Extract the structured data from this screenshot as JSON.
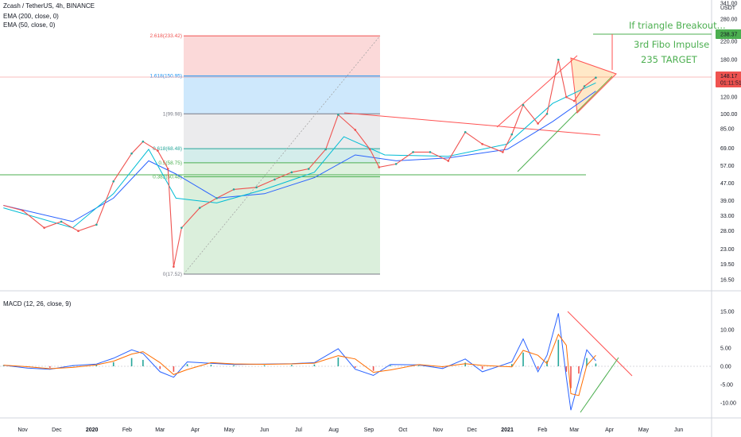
{
  "header": {
    "symbol_line": "Zcash / TetherUS, 4h, BINANCE",
    "ema200": "EMA (200, close, 0)",
    "ema50": "EMA (50, close, 0)",
    "macd": "MACD (12, 26, close, 9)"
  },
  "price_axis": {
    "unit": "USDT",
    "ticks": [
      "341.00",
      "280.00",
      "220.00",
      "180.00",
      "150.00",
      "120.00",
      "100.00",
      "85.00",
      "69.00",
      "57.00",
      "47.00",
      "39.00",
      "33.00",
      "28.00",
      "23.00",
      "19.50",
      "16.50"
    ],
    "current_price": "148.17",
    "countdown": "01:11:51",
    "target_price": "238.37"
  },
  "macd_axis": {
    "ticks": [
      "15.00",
      "10.00",
      "5.00",
      "0.00",
      "-5.00",
      "-10.00"
    ]
  },
  "time_axis": {
    "labels": [
      "Nov",
      "Dec",
      "2020",
      "Feb",
      "Mar",
      "Apr",
      "May",
      "Jun",
      "Jul",
      "Aug",
      "Sep",
      "Oct",
      "Nov",
      "Dec",
      "2021",
      "Feb",
      "Mar",
      "Apr",
      "May",
      "Jun"
    ]
  },
  "fib_levels": [
    {
      "label": "2.618(233.42)",
      "color": "#ef5350"
    },
    {
      "label": "1.618(150.95)",
      "color": "#2196f3"
    },
    {
      "label": "1(99.98)",
      "color": "#787b86"
    },
    {
      "label": "0.618(68.48)",
      "color": "#26a69a"
    },
    {
      "label": "0.5(58.75)",
      "color": "#4caf50"
    },
    {
      "label": "0.382(50.48)",
      "color": "#4caf50"
    },
    {
      "label": "0(17.52)",
      "color": "#787b86"
    }
  ],
  "annotations": {
    "breakout": "If triangle Breakout...",
    "impulse": "3rd Fibo Impulse",
    "target": "235 TARGET"
  },
  "colors": {
    "up": "#26a69a",
    "down": "#ef5350",
    "ema200": "#2962ff",
    "ema50": "#00bcd4",
    "macd_line": "#2962ff",
    "signal_line": "#ff6d00",
    "trend_red": "#ff5252",
    "trend_green": "#4caf50",
    "annotation": "#4caf50"
  },
  "chart_data": {
    "type": "line",
    "title": "Zcash / TetherUS, 4h, BINANCE",
    "y_scale": "log",
    "ylim": [
      15.5,
      341
    ],
    "x_range": [
      "2019-10-12",
      "2021-06-30"
    ],
    "series": [
      {
        "name": "Zcash / TetherUS",
        "points": [
          [
            "2019-10-15",
            37
          ],
          [
            "2019-11-01",
            35
          ],
          [
            "2019-11-20",
            29
          ],
          [
            "2019-12-05",
            31
          ],
          [
            "2019-12-20",
            28
          ],
          [
            "2020-01-05",
            30
          ],
          [
            "2020-01-20",
            48
          ],
          [
            "2020-02-05",
            65
          ],
          [
            "2020-02-15",
            74
          ],
          [
            "2020-02-28",
            67
          ],
          [
            "2020-03-08",
            55
          ],
          [
            "2020-03-13",
            19
          ],
          [
            "2020-03-20",
            29
          ],
          [
            "2020-04-05",
            36
          ],
          [
            "2020-04-20",
            40
          ],
          [
            "2020-05-05",
            44
          ],
          [
            "2020-05-25",
            45
          ],
          [
            "2020-06-10",
            49
          ],
          [
            "2020-06-25",
            53
          ],
          [
            "2020-07-10",
            55
          ],
          [
            "2020-07-25",
            68
          ],
          [
            "2020-08-05",
            99
          ],
          [
            "2020-08-20",
            84
          ],
          [
            "2020-09-02",
            68
          ],
          [
            "2020-09-10",
            56
          ],
          [
            "2020-09-25",
            58
          ],
          [
            "2020-10-10",
            66
          ],
          [
            "2020-10-25",
            66
          ],
          [
            "2020-11-10",
            60
          ],
          [
            "2020-11-25",
            82
          ],
          [
            "2020-12-10",
            72
          ],
          [
            "2020-12-28",
            66
          ],
          [
            "2021-01-05",
            80
          ],
          [
            "2021-01-15",
            110
          ],
          [
            "2021-01-28",
            90
          ],
          [
            "2021-02-05",
            100
          ],
          [
            "2021-02-15",
            180
          ],
          [
            "2021-02-22",
            120
          ],
          [
            "2021-03-01",
            115
          ],
          [
            "2021-03-10",
            135
          ],
          [
            "2021-03-20",
            148.17
          ]
        ]
      }
    ],
    "ema200": [
      [
        "2019-10-15",
        37
      ],
      [
        "2019-12-15",
        31
      ],
      [
        "2020-01-20",
        40
      ],
      [
        "2020-02-20",
        60
      ],
      [
        "2020-03-15",
        52
      ],
      [
        "2020-04-20",
        40
      ],
      [
        "2020-06-01",
        42
      ],
      [
        "2020-07-15",
        50
      ],
      [
        "2020-08-20",
        64
      ],
      [
        "2020-09-25",
        60
      ],
      [
        "2020-11-10",
        62
      ],
      [
        "2021-01-01",
        68
      ],
      [
        "2021-02-10",
        92
      ],
      [
        "2021-03-20",
        128
      ]
    ],
    "ema50": [
      [
        "2019-10-15",
        36
      ],
      [
        "2019-12-15",
        29
      ],
      [
        "2020-01-20",
        42
      ],
      [
        "2020-02-20",
        68
      ],
      [
        "2020-03-15",
        40
      ],
      [
        "2020-04-20",
        38
      ],
      [
        "2020-06-01",
        44
      ],
      [
        "2020-07-15",
        53
      ],
      [
        "2020-08-10",
        78
      ],
      [
        "2020-09-15",
        64
      ],
      [
        "2020-11-10",
        63
      ],
      [
        "2021-01-01",
        72
      ],
      [
        "2021-02-10",
        112
      ],
      [
        "2021-03-20",
        140
      ]
    ],
    "macd": [
      [
        "2019-10-15",
        0.3
      ],
      [
        "2019-11-05",
        -0.5
      ],
      [
        "2019-11-25",
        -0.8
      ],
      [
        "2019-12-15",
        0.2
      ],
      [
        "2020-01-05",
        0.6
      ],
      [
        "2020-01-20",
        2.2
      ],
      [
        "2020-02-05",
        4.5
      ],
      [
        "2020-02-15",
        3.5
      ],
      [
        "2020-03-01",
        -1.5
      ],
      [
        "2020-03-13",
        -3.0
      ],
      [
        "2020-03-25",
        1.2
      ],
      [
        "2020-04-15",
        0.8
      ],
      [
        "2020-05-05",
        0.5
      ],
      [
        "2020-06-01",
        0.6
      ],
      [
        "2020-06-25",
        0.7
      ],
      [
        "2020-07-15",
        1.0
      ],
      [
        "2020-08-05",
        4.8
      ],
      [
        "2020-08-20",
        -0.8
      ],
      [
        "2020-09-05",
        -2.5
      ],
      [
        "2020-09-20",
        0.5
      ],
      [
        "2020-10-15",
        0.4
      ],
      [
        "2020-11-05",
        -0.6
      ],
      [
        "2020-11-25",
        2.0
      ],
      [
        "2020-12-10",
        -1.5
      ],
      [
        "2021-01-05",
        1.2
      ],
      [
        "2021-01-15",
        7.5
      ],
      [
        "2021-01-28",
        -1.5
      ],
      [
        "2021-02-05",
        3.0
      ],
      [
        "2021-02-15",
        14.5
      ],
      [
        "2021-02-22",
        -3.0
      ],
      [
        "2021-02-26",
        -12.0
      ],
      [
        "2021-03-05",
        -4.0
      ],
      [
        "2021-03-12",
        4.5
      ],
      [
        "2021-03-20",
        1.5
      ]
    ],
    "ylabel": "USDT"
  }
}
